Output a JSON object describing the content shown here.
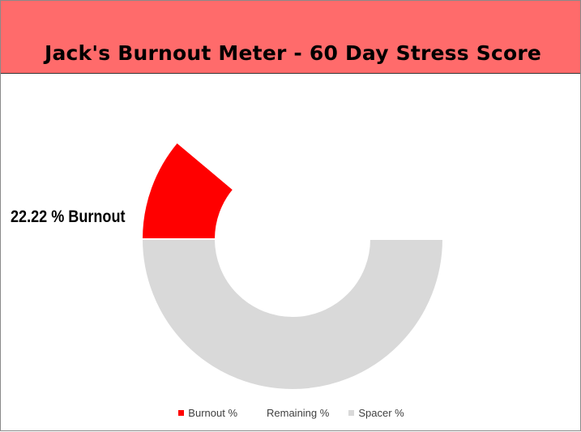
{
  "banner": {
    "title": "Jack's Burnout Meter - 60 Day Stress Score",
    "background": "#ff6b6b"
  },
  "chart_data": {
    "type": "pie",
    "subtype": "half-donut gauge",
    "title": "Jack's Burnout Meter - 60 Day Stress Score",
    "data_label": "22.22 % Burnout",
    "series": [
      {
        "name": "Burnout %",
        "value": 22.22,
        "color": "#ff0000"
      },
      {
        "name": "Remaining %",
        "value": 77.78,
        "color": "#ffffff"
      },
      {
        "name": "Spacer %",
        "value": 100,
        "color": "#d9d9d9"
      }
    ],
    "legend_position": "bottom",
    "grid": false
  }
}
